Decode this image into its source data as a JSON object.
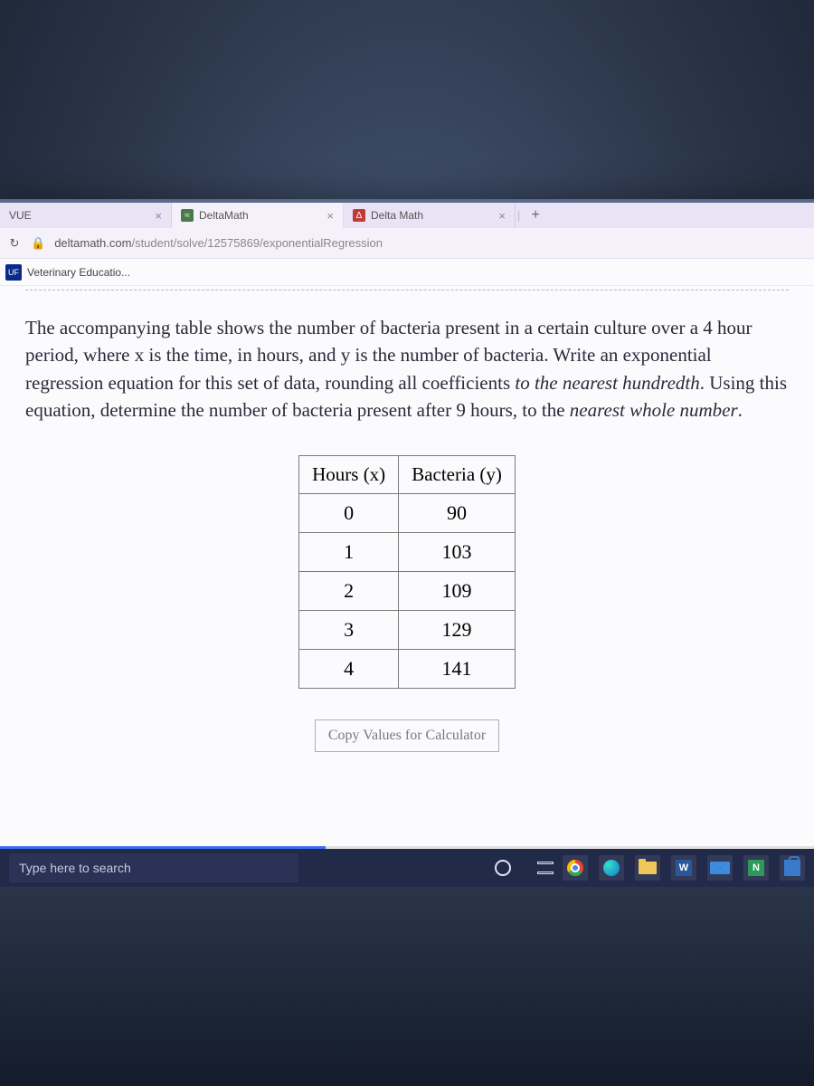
{
  "tabs": [
    {
      "title": "VUE",
      "favColor": "#5a8a5a",
      "favText": ""
    },
    {
      "title": "DeltaMath",
      "favColor": "#4a7a4a",
      "favText": "≈"
    },
    {
      "title": "Delta Math",
      "favColor": "#c03a3a",
      "favText": "Δ"
    }
  ],
  "address": {
    "host": "deltamath.com",
    "path": "/student/solve/12575869/exponentialRegression"
  },
  "bookmark": {
    "favText": "UF",
    "label": "Veterinary Educatio..."
  },
  "problem": {
    "p1": "The accompanying table shows the number of bacteria present in a certain culture over a 4 hour period, where x is the time, in hours, and y is the number of bacteria.",
    "p2a": "Write an exponential regression equation for this set of data, rounding all coefficients ",
    "p2em": "to the nearest hundredth",
    "p2b": ". Using this equation, determine the number of bacteria present after 9 hours, to the ",
    "p2em2": "nearest whole number",
    "p2c": "."
  },
  "table": {
    "headers": [
      "Hours (x)",
      "Bacteria (y)"
    ],
    "rows": [
      [
        "0",
        "90"
      ],
      [
        "1",
        "103"
      ],
      [
        "2",
        "109"
      ],
      [
        "3",
        "129"
      ],
      [
        "4",
        "141"
      ]
    ]
  },
  "copyLabel": "Copy Values for Calculator",
  "taskbar": {
    "searchPlaceholder": "Type here to search"
  }
}
